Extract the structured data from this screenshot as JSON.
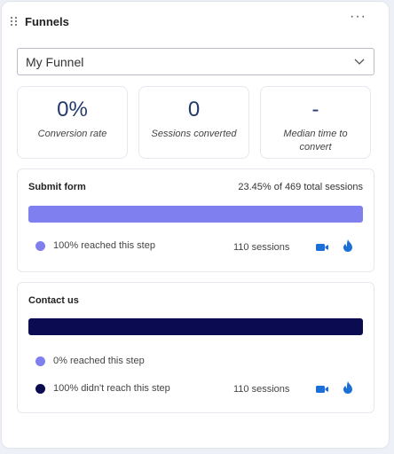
{
  "header": {
    "title": "Funnels",
    "more_label": "···"
  },
  "dropdown": {
    "selected": "My Funnel"
  },
  "metrics": [
    {
      "value": "0%",
      "label": "Conversion rate"
    },
    {
      "value": "0",
      "label": "Sessions converted"
    },
    {
      "value": "-",
      "label": "Median time to convert"
    }
  ],
  "steps": [
    {
      "name": "Submit form",
      "total": "23.45% of 469 total sessions",
      "reached_fraction": 1.0,
      "reached_label": "100% reached this step",
      "sessions": "110 sessions"
    },
    {
      "name": "Contact us",
      "reached_fraction": 0,
      "reached_label": "0% reached this step",
      "dropped_label": "100% didn't reach this step",
      "sessions": "110 sessions"
    }
  ],
  "colors": {
    "step1_bar": "#7f7ff0",
    "step2_bar": "#0b0b52",
    "reached_dot": "#7f7ff0",
    "dropped_dot": "#0b0b52",
    "action_icon": "#1d6fd8"
  }
}
